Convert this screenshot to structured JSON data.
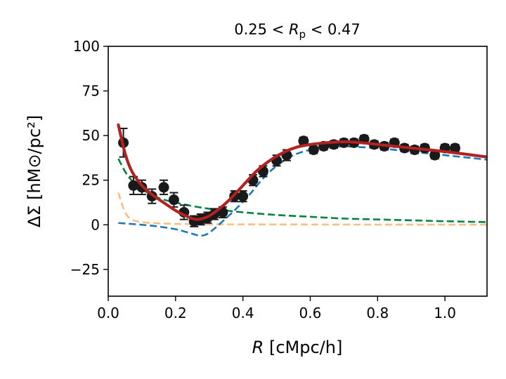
{
  "chart_data": {
    "type": "scatter",
    "title": "0.25 < R_p < 0.47",
    "title_parts": {
      "left": "0.25 < ",
      "var": "R",
      "sub": "p",
      "right": " < 0.47"
    },
    "xlabel": "R [cMpc/h]",
    "xlabel_parts": {
      "var": "R",
      "rest": " [cMpc/h]"
    },
    "ylabel": "ΔΣ [hM⊙/pc²]",
    "xlim": [
      0.0,
      1.125
    ],
    "ylim": [
      -40,
      100
    ],
    "xticks": [
      0.0,
      0.2,
      0.4,
      0.6,
      0.8,
      1.0
    ],
    "xtick_labels": [
      "0.0",
      "0.2",
      "0.4",
      "0.6",
      "0.8",
      "1.0"
    ],
    "yticks": [
      -25,
      0,
      25,
      50,
      75,
      100
    ],
    "ytick_labels": [
      "−25",
      "0",
      "25",
      "50",
      "75",
      "100"
    ],
    "grid": false,
    "colors": {
      "points": "#1a1a1a",
      "total_model": "#b22222",
      "blue_dashed": "#1f77b4",
      "green_dashed": "#00843d",
      "orange_dashed": "#f9bf82"
    },
    "points": {
      "name": "data",
      "x": [
        0.045,
        0.075,
        0.1,
        0.13,
        0.165,
        0.195,
        0.225,
        0.255,
        0.275,
        0.295,
        0.315,
        0.34,
        0.375,
        0.4,
        0.43,
        0.46,
        0.5,
        0.53,
        0.58,
        0.61,
        0.64,
        0.67,
        0.7,
        0.73,
        0.76,
        0.79,
        0.82,
        0.85,
        0.88,
        0.91,
        0.94,
        0.97,
        1.0,
        1.03
      ],
      "y": [
        46,
        22,
        21,
        16,
        21,
        14,
        7,
        2,
        3,
        4,
        6,
        7,
        16,
        16,
        25,
        30,
        36,
        39,
        47,
        42,
        44,
        45,
        46,
        46,
        48,
        45,
        44,
        46,
        43,
        42,
        43,
        39,
        43,
        43
      ],
      "yerr": [
        8,
        5,
        4,
        4,
        4,
        4,
        4,
        3,
        3,
        3,
        3,
        3,
        3,
        3,
        3,
        3,
        3,
        3,
        2,
        2,
        2,
        2,
        2,
        2,
        2,
        2,
        2,
        2,
        2,
        2,
        2,
        2,
        2,
        2
      ]
    },
    "series": [
      {
        "name": "orange-dashed-component",
        "style": "dashed",
        "x": [
          0.03,
          0.05,
          0.07,
          0.1,
          0.15,
          0.2,
          0.3,
          0.5,
          0.8,
          1.125
        ],
        "y": [
          18,
          7,
          3,
          1.5,
          0.8,
          0.5,
          0.3,
          0.2,
          0.1,
          0.1
        ]
      },
      {
        "name": "green-dashed-component",
        "style": "dashed",
        "x": [
          0.03,
          0.06,
          0.1,
          0.15,
          0.2,
          0.25,
          0.3,
          0.35,
          0.4,
          0.5,
          0.6,
          0.7,
          0.8,
          0.9,
          1.0,
          1.125
        ],
        "y": [
          37,
          27,
          20,
          15,
          12.5,
          10.5,
          9,
          8,
          7,
          5.5,
          4.5,
          3.5,
          3,
          2.5,
          2,
          1.5
        ]
      },
      {
        "name": "blue-dashed-component",
        "style": "dashed",
        "x": [
          0.03,
          0.1,
          0.15,
          0.2,
          0.24,
          0.27,
          0.29,
          0.31,
          0.34,
          0.38,
          0.42,
          0.46,
          0.5,
          0.55,
          0.6,
          0.65,
          0.7,
          0.75,
          0.8,
          0.9,
          1.0,
          1.125
        ],
        "y": [
          1,
          0,
          -1,
          -2.5,
          -4.5,
          -6,
          -5.5,
          -3,
          2,
          9,
          17,
          26,
          33,
          39,
          42,
          43.5,
          44,
          43.5,
          43,
          41,
          39,
          36.5
        ]
      },
      {
        "name": "total-model",
        "style": "solid",
        "x": [
          0.03,
          0.05,
          0.07,
          0.1,
          0.13,
          0.16,
          0.2,
          0.23,
          0.26,
          0.28,
          0.3,
          0.33,
          0.36,
          0.4,
          0.44,
          0.48,
          0.52,
          0.56,
          0.6,
          0.65,
          0.7,
          0.75,
          0.8,
          0.9,
          1.0,
          1.125
        ],
        "y": [
          56,
          40,
          30,
          22,
          17,
          13,
          8,
          5,
          3,
          3.5,
          5,
          9,
          14,
          22,
          30,
          36,
          40.5,
          43.5,
          45,
          46,
          46.5,
          46,
          45,
          43,
          41,
          38
        ]
      }
    ]
  }
}
